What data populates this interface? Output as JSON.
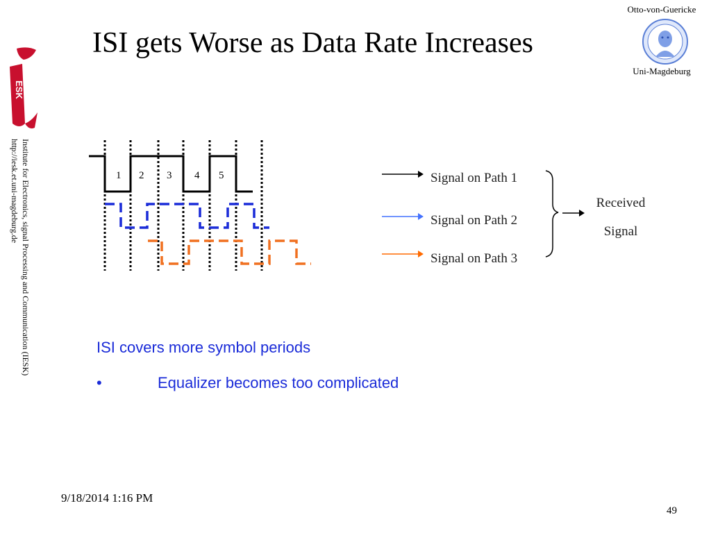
{
  "slide": {
    "title": "ISI gets Worse as Data Rate Increases",
    "university_top": "Otto-von-Guericke",
    "university_bottom": "Uni-Magdeburg",
    "institute_line1": "Institute for Electronics, signal Processing and Communication (IESK)",
    "institute_line2": "http://iesk.et.uni-magdeburg.de",
    "logo_text": "ESK",
    "date": "9/18/2014 1:16 PM",
    "page_number": "49"
  },
  "diagram": {
    "symbol_labels": [
      "1",
      "2",
      "3",
      "4",
      "5"
    ],
    "paths": [
      {
        "label": "Signal on Path 1",
        "color": "#000000"
      },
      {
        "label": "Signal on Path 2",
        "color": "#4472ff"
      },
      {
        "label": "Signal on Path 3",
        "color": "#ff6a00"
      }
    ],
    "received_line1": "Received",
    "received_line2": "Signal",
    "wave_colors": {
      "path1": "#000000",
      "path2": "#1a2bd8",
      "path3": "#f07020"
    }
  },
  "bullets": {
    "line1": "ISI covers more symbol periods",
    "line2_marker": "•",
    "line2": "Equalizer becomes too complicated"
  }
}
